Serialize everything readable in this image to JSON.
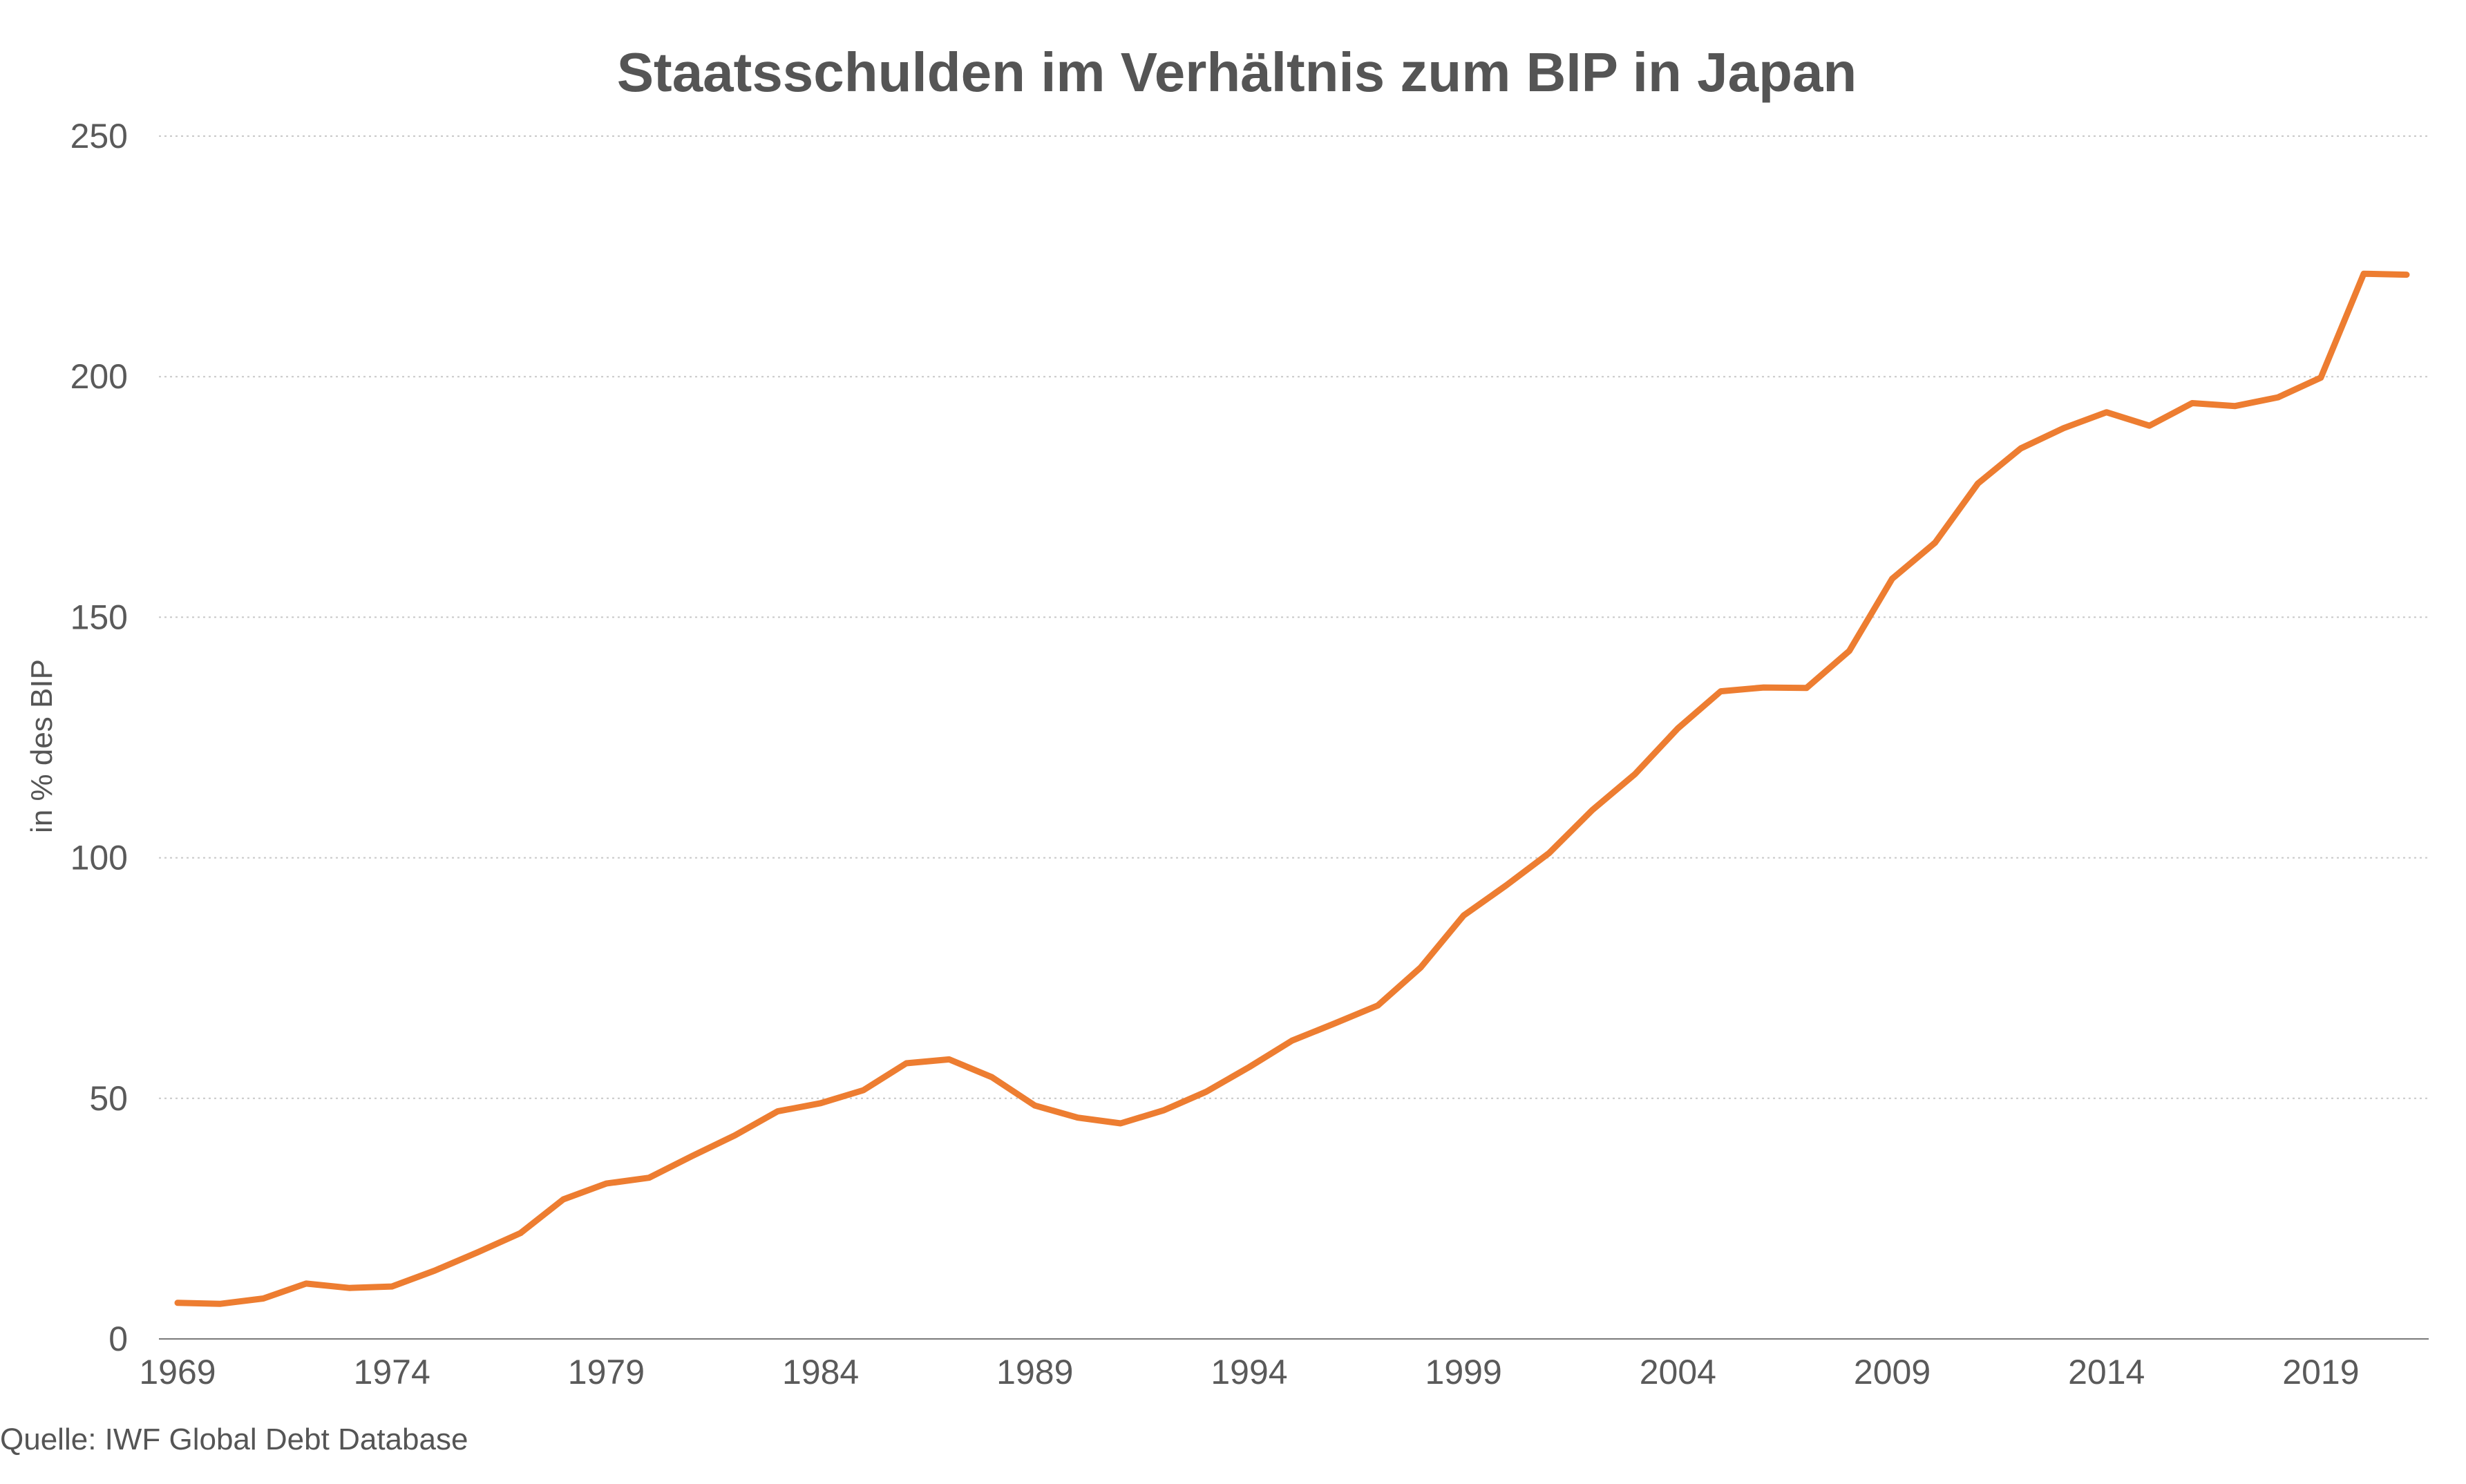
{
  "chart_data": {
    "type": "line",
    "title": "Staatsschulden im Verhältnis zum BIP in Japan",
    "ylabel": "in % des BIP",
    "xlabel": "",
    "source": "Quelle: IWF Global Debt Database",
    "ylim": [
      0,
      250
    ],
    "xlim": [
      1969,
      2021
    ],
    "y_ticks": [
      0,
      50,
      100,
      150,
      200,
      250
    ],
    "x_ticks": [
      1969,
      1974,
      1979,
      1984,
      1989,
      1994,
      1999,
      2004,
      2009,
      2014,
      2019
    ],
    "grid": true,
    "legend": "none",
    "line_color": "#ed7d31",
    "x": [
      1969,
      1970,
      1971,
      1972,
      1973,
      1974,
      1975,
      1976,
      1977,
      1978,
      1979,
      1980,
      1981,
      1982,
      1983,
      1984,
      1985,
      1986,
      1987,
      1988,
      1989,
      1990,
      1991,
      1992,
      1993,
      1994,
      1995,
      1996,
      1997,
      1998,
      1999,
      2000,
      2001,
      2002,
      2003,
      2004,
      2005,
      2006,
      2007,
      2008,
      2009,
      2010,
      2011,
      2012,
      2013,
      2014,
      2015,
      2016,
      2017,
      2018,
      2019,
      2020,
      2021
    ],
    "series": [
      {
        "values": [
          7.5,
          7.3,
          8.4,
          11.5,
          10.6,
          10.9,
          14.2,
          18.0,
          22.0,
          29.0,
          32.3,
          33.5,
          38.0,
          42.3,
          47.3,
          49.0,
          51.7,
          57.3,
          58.1,
          54.4,
          48.5,
          46.0,
          44.8,
          47.5,
          51.4,
          56.5,
          62.0,
          65.6,
          69.3,
          77.2,
          88.0,
          94.3,
          101.0,
          109.9,
          117.4,
          126.9,
          134.6,
          135.4,
          135.3,
          143.0,
          158.0,
          165.5,
          177.8,
          185.1,
          189.3,
          192.6,
          189.8,
          194.5,
          193.9,
          195.7,
          199.8,
          221.4,
          221.2
        ]
      }
    ]
  }
}
